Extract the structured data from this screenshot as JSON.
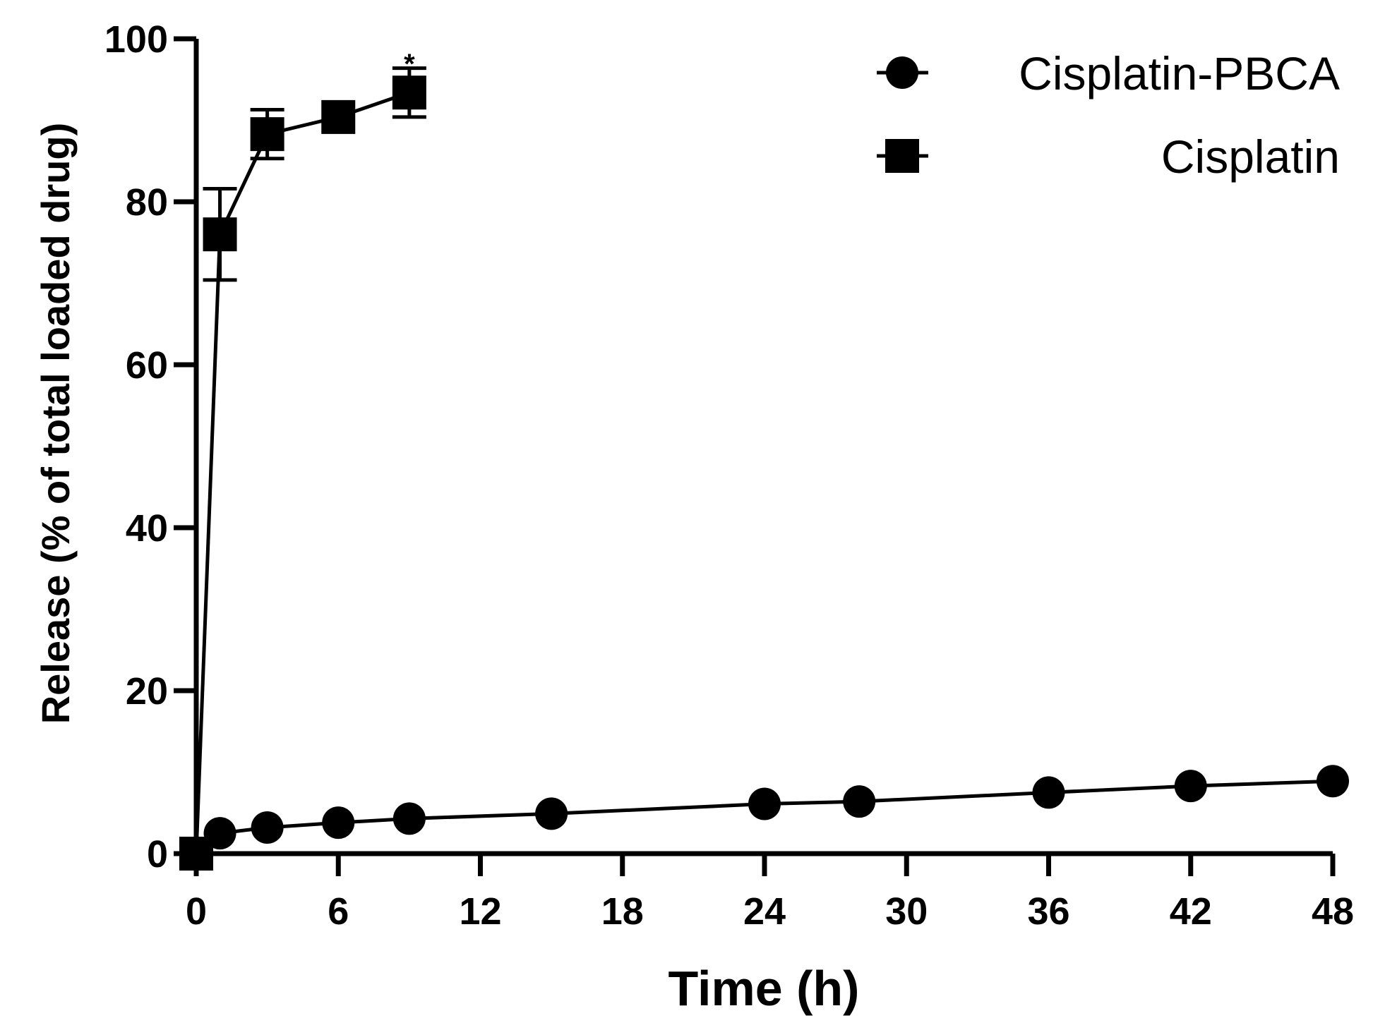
{
  "chart_data": {
    "type": "line",
    "title": "",
    "xlabel": "Time (h)",
    "ylabel": "Release (% of total loaded drug)",
    "xlim": [
      0,
      48
    ],
    "ylim": [
      0,
      100
    ],
    "x_ticks": [
      0,
      6,
      12,
      18,
      24,
      30,
      36,
      42,
      48
    ],
    "y_ticks": [
      0,
      20,
      40,
      60,
      80,
      100
    ],
    "grid": false,
    "legend_position": "top-right",
    "series": [
      {
        "name": "Cisplatin-PBCA",
        "marker": "circle",
        "color": "#000000",
        "x": [
          0,
          1,
          3,
          6,
          9,
          15,
          24,
          28,
          36,
          42,
          48
        ],
        "y": [
          0,
          2.5,
          3.2,
          3.8,
          4.3,
          4.9,
          6.1,
          6.4,
          7.5,
          8.3,
          8.9
        ],
        "error": [
          0,
          0,
          0,
          0,
          0,
          0,
          0,
          0,
          0,
          0,
          0
        ]
      },
      {
        "name": "Cisplatin",
        "marker": "square",
        "color": "#000000",
        "x": [
          0,
          1,
          3,
          6,
          9
        ],
        "y": [
          0,
          76,
          88.3,
          90.4,
          93.4
        ],
        "error": [
          0,
          5.6,
          3.0,
          0,
          3.0
        ]
      }
    ],
    "annotations": [
      {
        "text": "*",
        "x": 9,
        "y": 97.5
      }
    ]
  }
}
